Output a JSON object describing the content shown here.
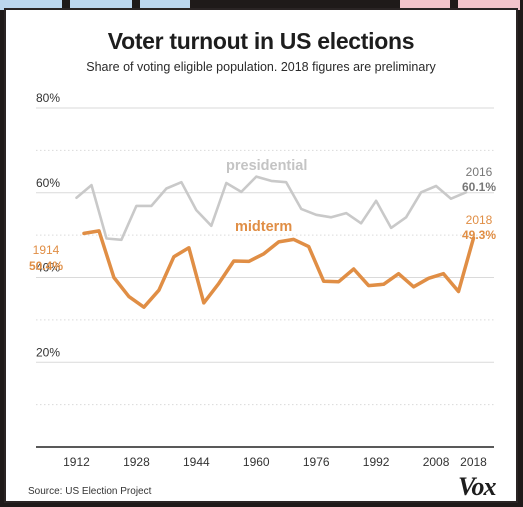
{
  "chart_data": {
    "type": "line",
    "title": "Voter turnout in US elections",
    "subtitle": "Share of voting eligible population. 2018 figures are preliminary",
    "xlabel": "",
    "ylabel": "",
    "xlim": [
      1910,
      2020
    ],
    "ylim": [
      0,
      80
    ],
    "x_ticks": [
      "1912",
      "1928",
      "1944",
      "1960",
      "1976",
      "1992",
      "2008",
      "2018"
    ],
    "x_tick_values": [
      1912,
      1928,
      1944,
      1960,
      1976,
      1992,
      2008,
      2018
    ],
    "y_ticks": [
      "80%",
      "60%",
      "40%",
      "20%"
    ],
    "y_tick_values": [
      80,
      60,
      40,
      20
    ],
    "grid": true,
    "series": [
      {
        "name": "presidential",
        "color": "#c9c9c9",
        "x": [
          1912,
          1916,
          1920,
          1924,
          1928,
          1932,
          1936,
          1940,
          1944,
          1948,
          1952,
          1956,
          1960,
          1964,
          1968,
          1972,
          1976,
          1980,
          1984,
          1988,
          1992,
          1996,
          2000,
          2004,
          2008,
          2012,
          2016
        ],
        "y": [
          58.8,
          61.8,
          49.2,
          48.9,
          56.9,
          56.9,
          61.0,
          62.5,
          55.9,
          52.2,
          62.3,
          60.2,
          63.8,
          62.8,
          62.5,
          56.2,
          54.8,
          54.2,
          55.2,
          52.8,
          58.1,
          51.7,
          54.2,
          60.1,
          61.6,
          58.6,
          60.1
        ]
      },
      {
        "name": "midterm",
        "color": "#e08e45",
        "x": [
          1914,
          1918,
          1922,
          1926,
          1930,
          1934,
          1938,
          1942,
          1946,
          1950,
          1954,
          1958,
          1962,
          1966,
          1970,
          1974,
          1978,
          1982,
          1986,
          1990,
          1994,
          1998,
          2002,
          2006,
          2010,
          2014,
          2018
        ],
        "y": [
          50.4,
          51.0,
          40.0,
          35.5,
          33.0,
          37.0,
          44.9,
          47.0,
          34.0,
          38.6,
          43.9,
          43.8,
          45.6,
          48.4,
          49.0,
          47.3,
          39.1,
          39.0,
          42.0,
          38.1,
          38.4,
          40.9,
          37.8,
          39.8,
          40.9,
          36.7,
          49.3
        ]
      }
    ],
    "annotations": {
      "presidential_label": "presidential",
      "midterm_label": "midterm",
      "start_year": "1914",
      "start_value": "50.4%",
      "end_year_pres": "2016",
      "end_value_pres": "60.1%",
      "end_year_mid": "2018",
      "end_value_mid": "49.3%"
    }
  },
  "footer": {
    "source": "Source: US Election Project",
    "logo": "Vox"
  },
  "colors": {
    "tiles": [
      "#bcd6ee",
      "#bcd6ee",
      "#bcd6ee",
      "#f3c4cb",
      "#f3c4cb",
      "#f3c4cb"
    ],
    "axis_text": "#333333",
    "gridline": "#dadada"
  }
}
